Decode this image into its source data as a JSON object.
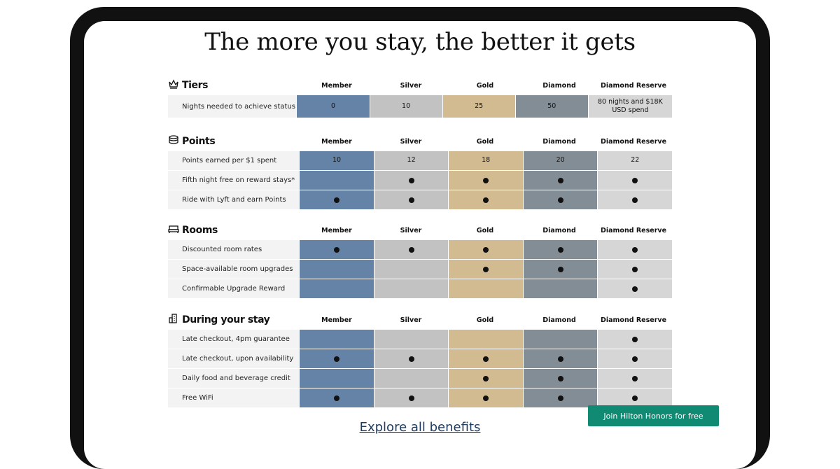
{
  "title": "The more you stay, the better it gets",
  "tiers": [
    "Member",
    "Silver",
    "Gold",
    "Diamond",
    "Diamond Reserve"
  ],
  "tier_colors": [
    "#6582a7",
    "#c2c2c2",
    "#d2bb90",
    "#838d96",
    "#d6d6d6"
  ],
  "sections": [
    {
      "name": "Tiers",
      "icon": "crown-icon",
      "rows": [
        {
          "label": "Nights needed to achieve status",
          "values": [
            "0",
            "10",
            "25",
            "50",
            "80 nights and $18K USD spend"
          ]
        }
      ]
    },
    {
      "name": "Points",
      "icon": "coins-icon",
      "rows": [
        {
          "label": "Points earned per $1 spent",
          "values": [
            "10",
            "12",
            "18",
            "20",
            "22"
          ]
        },
        {
          "label": "Fifth night free on reward stays*",
          "values": [
            false,
            true,
            true,
            true,
            true
          ]
        },
        {
          "label": "Ride with Lyft and earn Points",
          "values": [
            true,
            true,
            true,
            true,
            true
          ]
        }
      ]
    },
    {
      "name": "Rooms",
      "icon": "bed-icon",
      "rows": [
        {
          "label": "Discounted room rates",
          "values": [
            true,
            true,
            true,
            true,
            true
          ]
        },
        {
          "label": "Space-available room upgrades",
          "values": [
            false,
            false,
            true,
            true,
            true
          ]
        },
        {
          "label": "Confirmable Upgrade Reward",
          "values": [
            false,
            false,
            false,
            false,
            true
          ]
        }
      ]
    },
    {
      "name": "During your stay",
      "icon": "hotel-building-icon",
      "rows": [
        {
          "label": "Late checkout, 4pm guarantee",
          "values": [
            false,
            false,
            false,
            false,
            true
          ]
        },
        {
          "label": "Late checkout, upon availability",
          "values": [
            true,
            true,
            true,
            true,
            true
          ]
        },
        {
          "label": "Daily food and beverage credit",
          "values": [
            false,
            false,
            true,
            true,
            true
          ]
        },
        {
          "label": "Free WiFi",
          "values": [
            true,
            true,
            true,
            true,
            true
          ]
        }
      ]
    }
  ],
  "explore_link": "Explore all benefits",
  "join_button": "Join Hilton Honors for free"
}
